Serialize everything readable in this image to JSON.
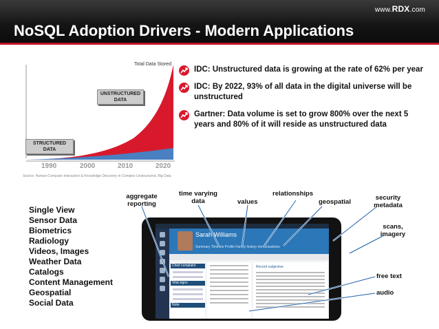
{
  "header": {
    "logo_prefix": "www.",
    "logo_brand": "RDX",
    "logo_suffix": ".com",
    "title": "NoSQL Adoption Drivers - Modern Applications",
    "accent_color": "#c0142a"
  },
  "chart": {
    "total_label": "Total Data Stored",
    "unstructured_label": "UNSTRUCTURED DATA",
    "structured_label": "STRUCTURED DATA",
    "years": [
      "1990",
      "2000",
      "2010",
      "2020"
    ],
    "source": "Source: Human-Computer Interaction & Knowledge Discovery in Complex Unstructured, Big Data"
  },
  "bullets": [
    {
      "icon": "growth-chart-icon",
      "text": "IDC: Unstructured data is growing at the rate of 62% per year"
    },
    {
      "icon": "growth-chart-icon",
      "text": "IDC: By 2022, 93% of all data in the digital universe will be unstructured"
    },
    {
      "icon": "growth-chart-icon",
      "text": "Gartner: Data volume is set to grow 800% over the next 5 years and 80% of it will reside as unstructured data"
    }
  ],
  "use_cases": [
    "Single View",
    "Sensor Data",
    "Biometrics",
    "Radiology",
    "Videos, Images",
    "Weather Data",
    "Catalogs",
    "Content Management",
    "Geospatial",
    "Social Data"
  ],
  "callouts": {
    "aggregate": "aggregate reporting",
    "time_varying": "time varying data",
    "values": "values",
    "relationships": "relationships",
    "geospatial": "geospatial",
    "security": "security metadata",
    "scans": "scans, imagery",
    "free_text": "free text",
    "audio": "audio"
  },
  "tablet": {
    "patient_name": "Sarah Williams",
    "tabs": "Summary   Timeline   Profile   Family history   Immunizations",
    "panel_a_title": "Chief complaint",
    "panel_a_sub": "Vital signs",
    "panel_a_note": "Note",
    "panel_c_title": "Record subjective"
  }
}
